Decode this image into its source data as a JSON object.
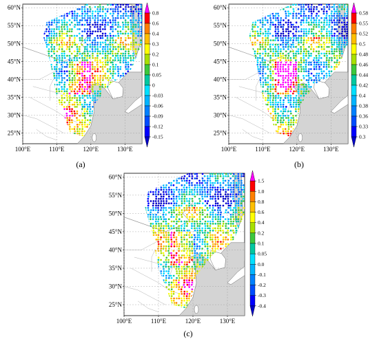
{
  "map_panels": [
    {
      "id": "a",
      "label": "(a)",
      "lat_ticks": [
        "25°N",
        "30°N",
        "35°N",
        "40°N",
        "45°N",
        "50°N",
        "55°N",
        "60°N"
      ],
      "lon_ticks": [
        "100°E",
        "110°E",
        "120°E",
        "130°E"
      ],
      "colorbar": {
        "labels": [
          "0.8",
          "0.6",
          "0.4",
          "0.3",
          "0.2",
          "0.1",
          "0.05",
          "0",
          "-0.03",
          "-0.06",
          "-0.09",
          "-0.12",
          "-0.15"
        ],
        "colors": [
          "#ff00ff",
          "#ff0000",
          "#ff7f00",
          "#ffbf00",
          "#ffff00",
          "#a8e000",
          "#3cc83c",
          "#00c8a0",
          "#00e0ff",
          "#00b4ff",
          "#0080ff",
          "#004cff",
          "#0000ff",
          "#0000c8"
        ]
      }
    },
    {
      "id": "b",
      "label": "(b)",
      "lat_ticks": [
        "25°N",
        "30°N",
        "35°N",
        "40°N",
        "45°N",
        "50°N",
        "55°N",
        "60°N"
      ],
      "lon_ticks": [
        "100°E",
        "110°E",
        "120°E",
        "130°E"
      ],
      "colorbar": {
        "labels": [
          "0.58",
          "0.55",
          "0.52",
          "0.5",
          "0.48",
          "0.46",
          "0.44",
          "0.42",
          "0.4",
          "0.38",
          "0.36",
          "0.33",
          "0.3"
        ],
        "colors": [
          "#ff00ff",
          "#ff0000",
          "#ff7f00",
          "#ffbf00",
          "#ffff00",
          "#a8e000",
          "#3cc83c",
          "#00c8a0",
          "#00e0ff",
          "#00b4ff",
          "#0080ff",
          "#004cff",
          "#0000ff",
          "#0000c8"
        ]
      }
    },
    {
      "id": "c",
      "label": "(c)",
      "lat_ticks": [
        "25°N",
        "30°N",
        "35°N",
        "40°N",
        "45°N",
        "50°N",
        "55°N",
        "60°N"
      ],
      "lon_ticks": [
        "100°E",
        "110°E",
        "120°E",
        "130°E"
      ],
      "colorbar": {
        "labels": [
          "1.5",
          "1.0",
          "0.8",
          "0.6",
          "0.4",
          "0.2",
          "0.1",
          "0.05",
          "0.0",
          "-0.1",
          "-0.2",
          "-0.3",
          "-0.4"
        ],
        "colors": [
          "#ff00ff",
          "#ff0000",
          "#ff7f00",
          "#ffbf00",
          "#ffff00",
          "#a8e000",
          "#3cc83c",
          "#00c8a0",
          "#00e0ff",
          "#00b4ff",
          "#0080ff",
          "#004cff",
          "#0000ff",
          "#0000c8"
        ]
      }
    }
  ]
}
